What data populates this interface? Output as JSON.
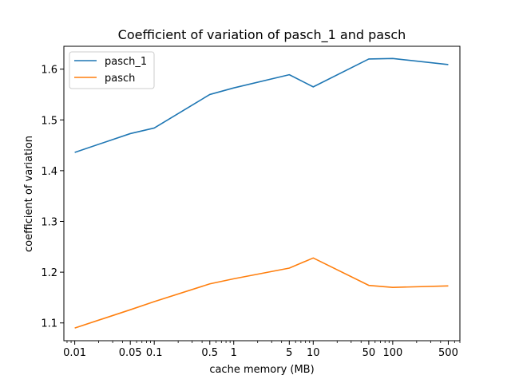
{
  "chart_data": {
    "type": "line",
    "title": "Coefficient of variation of pasch_1 and pasch",
    "xlabel": "cache memory (MB)",
    "ylabel": "coefficient of variation",
    "xscale": "log",
    "xlim": [
      0.0073,
      700
    ],
    "ylim": [
      1.065,
      1.645
    ],
    "x_ticks": [
      0.01,
      0.05,
      0.1,
      0.5,
      1,
      5,
      10,
      50,
      100,
      500
    ],
    "x_tick_labels": [
      "0.01",
      "0.05",
      "0.1",
      "0.5",
      "1",
      "5",
      "10",
      "50",
      "100",
      "500"
    ],
    "y_ticks": [
      1.1,
      1.2,
      1.3,
      1.4,
      1.5,
      1.6
    ],
    "y_tick_labels": [
      "1.1",
      "1.2",
      "1.3",
      "1.4",
      "1.5",
      "1.6"
    ],
    "grid": false,
    "legend_position": "upper-left",
    "x": [
      0.01,
      0.05,
      0.1,
      0.5,
      1,
      5,
      10,
      50,
      100,
      500
    ],
    "series": [
      {
        "name": "pasch_1",
        "color": "#1f77b4",
        "values": [
          1.436,
          1.473,
          1.484,
          1.55,
          1.563,
          1.589,
          1.565,
          1.62,
          1.621,
          1.609
        ]
      },
      {
        "name": "pasch",
        "color": "#ff7f0e",
        "values": [
          1.09,
          1.126,
          1.142,
          1.177,
          1.187,
          1.208,
          1.228,
          1.174,
          1.17,
          1.173
        ]
      }
    ]
  }
}
